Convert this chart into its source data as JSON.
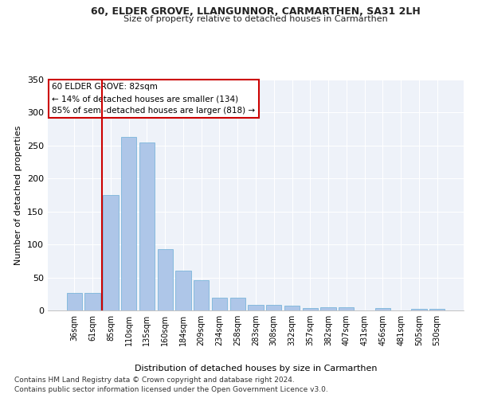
{
  "title": "60, ELDER GROVE, LLANGUNNOR, CARMARTHEN, SA31 2LH",
  "subtitle": "Size of property relative to detached houses in Carmarthen",
  "xlabel": "Distribution of detached houses by size in Carmarthen",
  "ylabel": "Number of detached properties",
  "categories": [
    "36sqm",
    "61sqm",
    "85sqm",
    "110sqm",
    "135sqm",
    "160sqm",
    "184sqm",
    "209sqm",
    "234sqm",
    "258sqm",
    "283sqm",
    "308sqm",
    "332sqm",
    "357sqm",
    "382sqm",
    "407sqm",
    "431sqm",
    "456sqm",
    "481sqm",
    "505sqm",
    "530sqm"
  ],
  "values": [
    27,
    27,
    175,
    263,
    255,
    93,
    60,
    46,
    19,
    19,
    9,
    9,
    7,
    4,
    5,
    5,
    0,
    4,
    0,
    2,
    2
  ],
  "bar_color": "#aec6e8",
  "bar_edgecolor": "#6aaed6",
  "vline_color": "#cc0000",
  "annotation_box_edgecolor": "#cc0000",
  "marker_label": "60 ELDER GROVE: 82sqm",
  "annotation_line1": "← 14% of detached houses are smaller (134)",
  "annotation_line2": "85% of semi-detached houses are larger (818) →",
  "background_color": "#eef2f9",
  "ylim": [
    0,
    350
  ],
  "footnote1": "Contains HM Land Registry data © Crown copyright and database right 2024.",
  "footnote2": "Contains public sector information licensed under the Open Government Licence v3.0."
}
